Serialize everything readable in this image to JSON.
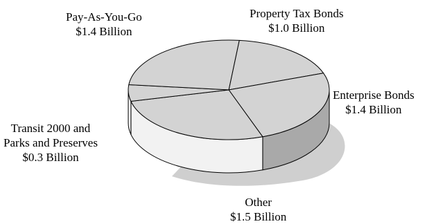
{
  "chart_data": {
    "type": "pie",
    "style": "3d",
    "slices": [
      {
        "name": "Property Tax Bonds",
        "value": 1.0,
        "amount_label": "$1.0 Billion"
      },
      {
        "name": "Enterprise Bonds",
        "value": 1.4,
        "amount_label": "$1.4 Billion"
      },
      {
        "name": "Other",
        "value": 1.5,
        "amount_label": "$1.5 Billion"
      },
      {
        "name_lines": [
          "Transit 2000 and",
          "Parks and Preserves"
        ],
        "value": 0.3,
        "amount_label": "$0.3 Billion"
      },
      {
        "name": "Pay-As-You-Go",
        "value": 1.4,
        "amount_label": "$1.4 Billion"
      }
    ],
    "colors": {
      "top": "#d3d3d3",
      "side_light": "#f2f2f2",
      "side_dark": "#a9a9a9",
      "outline": "#000000",
      "shadow": "#cfcfcf"
    }
  }
}
